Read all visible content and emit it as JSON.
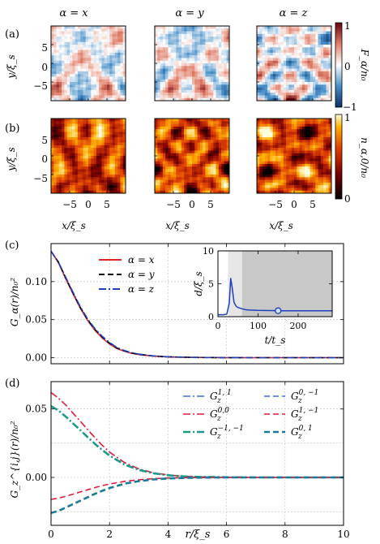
{
  "figure": {
    "panel_a": {
      "label": "(a)",
      "titles": [
        "α = x",
        "α = y",
        "α = z"
      ],
      "ylabel": "y/ξ_s",
      "yticks": [
        "5",
        "0",
        "−5"
      ],
      "colorbar": {
        "label": "F_α/n₀",
        "ticks": [
          "1",
          "0",
          "−1"
        ],
        "colors": [
          "#08306b",
          "#4a90c8",
          "#ffffff",
          "#e0806a",
          "#67000d"
        ]
      }
    },
    "panel_b": {
      "label": "(b)",
      "ylabel": "y/ξ_s",
      "yticks": [
        "5",
        "0",
        "−5"
      ],
      "xlabel": "x/ξ_s",
      "xticks": [
        "−5",
        "0",
        "5"
      ],
      "colorbar": {
        "label": "n_α,0/n₀",
        "ticks": [
          "1",
          "0"
        ],
        "colors": [
          "#000000",
          "#7a0000",
          "#e04000",
          "#ffb000",
          "#ffffe0"
        ]
      }
    }
  },
  "chart_data": [
    {
      "type": "line",
      "panel": "(c)",
      "ylabel": "G_α(r)/n₀²",
      "xlabel": "",
      "xlim": [
        0,
        10
      ],
      "ylim": [
        -0.008,
        0.15
      ],
      "yticks": [
        "0.00",
        "0.05",
        "0.10"
      ],
      "xticks": [
        "",
        "",
        "",
        "",
        "",
        ""
      ],
      "legend": "top-center",
      "x": [
        0,
        0.25,
        0.5,
        0.75,
        1,
        1.25,
        1.5,
        1.75,
        2,
        2.25,
        2.5,
        2.75,
        3,
        3.5,
        4,
        4.5,
        5,
        6,
        7,
        8,
        9,
        10
      ],
      "series": [
        {
          "name": "α = x",
          "color": "#d62728",
          "style": "solid",
          "values": [
            0.14,
            0.125,
            0.104,
            0.084,
            0.065,
            0.049,
            0.036,
            0.026,
            0.018,
            0.012,
            0.0085,
            0.0058,
            0.0041,
            0.002,
            0.001,
            0.0005,
            0.0002,
            0.0,
            0.0,
            0.0,
            0.0,
            0.0
          ]
        },
        {
          "name": "α = y",
          "color": "#000000",
          "style": "dash",
          "values": [
            0.14,
            0.126,
            0.105,
            0.085,
            0.066,
            0.05,
            0.037,
            0.027,
            0.019,
            0.0128,
            0.009,
            0.0062,
            0.0044,
            0.0022,
            0.0011,
            0.0006,
            0.0003,
            0.0,
            0.0,
            0.0,
            0.0,
            0.0
          ]
        },
        {
          "name": "α = z",
          "color": "#1f3fbf",
          "style": "dashdot",
          "values": [
            0.14,
            0.126,
            0.106,
            0.086,
            0.067,
            0.051,
            0.038,
            0.028,
            0.02,
            0.0135,
            0.0095,
            0.0066,
            0.0047,
            0.0024,
            0.0012,
            0.0006,
            0.0003,
            0.0001,
            0.0,
            0.0,
            0.0,
            0.0
          ]
        }
      ]
    },
    {
      "type": "line",
      "panel": "(c) inset",
      "ylabel": "d/ξ_s",
      "xlabel": "t/t_s",
      "xlim": [
        0,
        285
      ],
      "ylim": [
        0,
        10
      ],
      "xticks": [
        "0",
        "100",
        "200"
      ],
      "yticks": [
        "0",
        "5",
        "10"
      ],
      "shade_light": [
        25,
        60
      ],
      "shade_dark": [
        60,
        285
      ],
      "marker": {
        "x": 150,
        "y": 0.9
      },
      "x": [
        0,
        15,
        22,
        28,
        32,
        36,
        40,
        45,
        50,
        60,
        70,
        80,
        100,
        130,
        160,
        200,
        240,
        285
      ],
      "series": [
        {
          "name": "",
          "color": "#1f3fbf",
          "values": [
            0.3,
            0.3,
            0.4,
            2.0,
            5.8,
            4.2,
            2.2,
            1.6,
            1.4,
            1.2,
            1.05,
            1.0,
            0.95,
            0.92,
            0.9,
            0.9,
            0.9,
            0.9
          ]
        }
      ]
    },
    {
      "type": "line",
      "panel": "(d)",
      "ylabel": "G_z^{i,j}(r)/n₀²",
      "xlabel": "r/ξ_s",
      "xlim": [
        0,
        10
      ],
      "ylim": [
        -0.035,
        0.07
      ],
      "yticks": [
        "0.05",
        "0.00"
      ],
      "xticks": [
        "0",
        "2",
        "4",
        "6",
        "8",
        "10"
      ],
      "legend": "top-right",
      "x": [
        0,
        0.25,
        0.5,
        0.75,
        1,
        1.25,
        1.5,
        1.75,
        2,
        2.5,
        3,
        3.5,
        4,
        4.5,
        5,
        6,
        7,
        8,
        9,
        10
      ],
      "series": [
        {
          "name": "G_z^{1,1}",
          "label_base": "G",
          "label_sub": "z",
          "label_sup": "1, 1",
          "color": "#3f6fe0",
          "style": "dashdot",
          "width": 1.6,
          "values": [
            0.052,
            0.049,
            0.0445,
            0.0395,
            0.0345,
            0.0295,
            0.0245,
            0.02,
            0.016,
            0.0095,
            0.0055,
            0.003,
            0.0016,
            0.0008,
            0.0004,
            0.0001,
            0.0,
            0.0,
            0.0,
            0.0
          ]
        },
        {
          "name": "G_z^{0,0}",
          "label_base": "G",
          "label_sub": "z",
          "label_sup": "0,0",
          "color": "#dc1c3c",
          "style": "dashdot",
          "width": 1.6,
          "values": [
            0.062,
            0.058,
            0.053,
            0.047,
            0.041,
            0.035,
            0.029,
            0.0235,
            0.0185,
            0.011,
            0.0062,
            0.0034,
            0.0018,
            0.0009,
            0.0004,
            0.0001,
            0.0,
            0.0,
            0.0,
            0.0
          ]
        },
        {
          "name": "G_z^{−1,−1}",
          "label_base": "G",
          "label_sub": "z",
          "label_sup": "−1, −1",
          "color": "#1a9a8a",
          "style": "dashdot",
          "width": 2.6,
          "values": [
            0.052,
            0.049,
            0.0445,
            0.0395,
            0.0345,
            0.0295,
            0.0245,
            0.02,
            0.016,
            0.0095,
            0.0055,
            0.003,
            0.0016,
            0.0008,
            0.0004,
            0.0001,
            0.0,
            0.0,
            0.0,
            0.0
          ]
        },
        {
          "name": "G_z^{0,−1}",
          "label_base": "G",
          "label_sub": "z",
          "label_sup": "0, −1",
          "color": "#3f6fe0",
          "style": "dash",
          "width": 1.6,
          "values": [
            -0.026,
            -0.0245,
            -0.022,
            -0.0195,
            -0.017,
            -0.0145,
            -0.012,
            -0.0098,
            -0.0078,
            -0.0046,
            -0.0027,
            -0.0015,
            -0.0008,
            -0.0004,
            -0.0002,
            0.0,
            0.0,
            0.0,
            0.0,
            0.0
          ]
        },
        {
          "name": "G_z^{1,−1}",
          "label_base": "G",
          "label_sub": "z",
          "label_sup": "1, −1",
          "color": "#dc1c3c",
          "style": "dash",
          "width": 1.6,
          "values": [
            -0.016,
            -0.0152,
            -0.0138,
            -0.0122,
            -0.0106,
            -0.009,
            -0.0074,
            -0.006,
            -0.0048,
            -0.0029,
            -0.0017,
            -0.0009,
            -0.0005,
            -0.0002,
            -0.0001,
            0.0,
            0.0,
            0.0,
            0.0,
            0.0
          ]
        },
        {
          "name": "G_z^{0,1}",
          "label_base": "G",
          "label_sub": "z",
          "label_sup": "0, 1",
          "color": "#1a7a9a",
          "style": "dash",
          "width": 2.6,
          "values": [
            -0.026,
            -0.0245,
            -0.022,
            -0.0195,
            -0.017,
            -0.0145,
            -0.012,
            -0.0098,
            -0.0078,
            -0.0046,
            -0.0027,
            -0.0015,
            -0.0008,
            -0.0004,
            -0.0002,
            0.0,
            0.0,
            0.0,
            0.0,
            0.0
          ]
        }
      ]
    }
  ]
}
